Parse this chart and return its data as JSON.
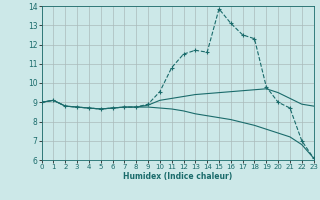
{
  "xlabel": "Humidex (Indice chaleur)",
  "bg_color": "#cce8e8",
  "grid_color": "#aabbbb",
  "line_color": "#1a6b6b",
  "xlim": [
    0,
    23
  ],
  "ylim": [
    6,
    14
  ],
  "xticks": [
    0,
    1,
    2,
    3,
    4,
    5,
    6,
    7,
    8,
    9,
    10,
    11,
    12,
    13,
    14,
    15,
    16,
    17,
    18,
    19,
    20,
    21,
    22,
    23
  ],
  "yticks": [
    6,
    7,
    8,
    9,
    10,
    11,
    12,
    13,
    14
  ],
  "curve1_x": [
    0,
    1,
    2,
    3,
    4,
    5,
    6,
    7,
    8,
    9,
    10,
    11,
    12,
    13,
    14,
    15,
    16,
    17,
    18,
    19,
    20,
    21,
    22,
    23
  ],
  "curve1_y": [
    9.0,
    9.1,
    8.8,
    8.75,
    8.7,
    8.65,
    8.7,
    8.75,
    8.75,
    8.9,
    9.55,
    10.8,
    11.5,
    11.7,
    11.6,
    13.85,
    13.1,
    12.5,
    12.3,
    9.8,
    9.0,
    8.7,
    7.0,
    6.1
  ],
  "curve2_x": [
    0,
    1,
    2,
    3,
    4,
    5,
    6,
    7,
    8,
    9,
    10,
    11,
    12,
    13,
    14,
    15,
    16,
    17,
    18,
    19,
    20,
    21,
    22,
    23
  ],
  "curve2_y": [
    9.0,
    9.1,
    8.8,
    8.75,
    8.7,
    8.65,
    8.7,
    8.75,
    8.75,
    8.85,
    9.1,
    9.2,
    9.3,
    9.4,
    9.45,
    9.5,
    9.55,
    9.6,
    9.65,
    9.7,
    9.5,
    9.2,
    8.9,
    8.8
  ],
  "curve3_x": [
    0,
    1,
    2,
    3,
    4,
    5,
    6,
    7,
    8,
    9,
    10,
    11,
    12,
    13,
    14,
    15,
    16,
    17,
    18,
    19,
    20,
    21,
    22,
    23
  ],
  "curve3_y": [
    9.0,
    9.1,
    8.8,
    8.75,
    8.7,
    8.65,
    8.7,
    8.75,
    8.75,
    8.75,
    8.7,
    8.65,
    8.55,
    8.4,
    8.3,
    8.2,
    8.1,
    7.95,
    7.8,
    7.6,
    7.4,
    7.2,
    6.8,
    6.1
  ]
}
